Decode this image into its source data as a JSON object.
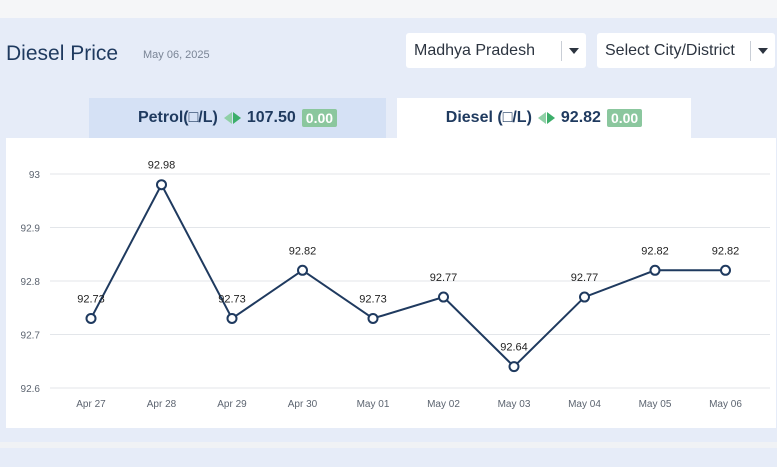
{
  "header": {
    "title": "Diesel Price",
    "date": "May 06, 2025"
  },
  "filters": {
    "state": "Madhya Pradesh",
    "city": "Select City/District"
  },
  "tabs": [
    {
      "label": "Petrol(□/L)",
      "price": "107.50",
      "change": "0.00"
    },
    {
      "label": "Diesel (□/L)",
      "price": "92.82",
      "change": "0.00"
    }
  ],
  "chart_data": {
    "type": "line",
    "categories": [
      "Apr 27",
      "Apr 28",
      "Apr 29",
      "Apr 30",
      "May 01",
      "May 02",
      "May 03",
      "May 04",
      "May 05",
      "May 06"
    ],
    "values": [
      92.73,
      92.98,
      92.73,
      92.82,
      92.73,
      92.77,
      92.64,
      92.77,
      92.82,
      92.82
    ],
    "value_labels": [
      "92.73",
      "92.98",
      "92.73",
      "92.82",
      "92.73",
      "92.77",
      "92.64",
      "92.77",
      "92.82",
      "92.82"
    ],
    "yticks": [
      "92.6",
      "92.7",
      "92.8",
      "92.9",
      "93"
    ],
    "ylim": [
      92.6,
      93.0
    ],
    "grid": true,
    "line_color": "#1f3a5f"
  }
}
